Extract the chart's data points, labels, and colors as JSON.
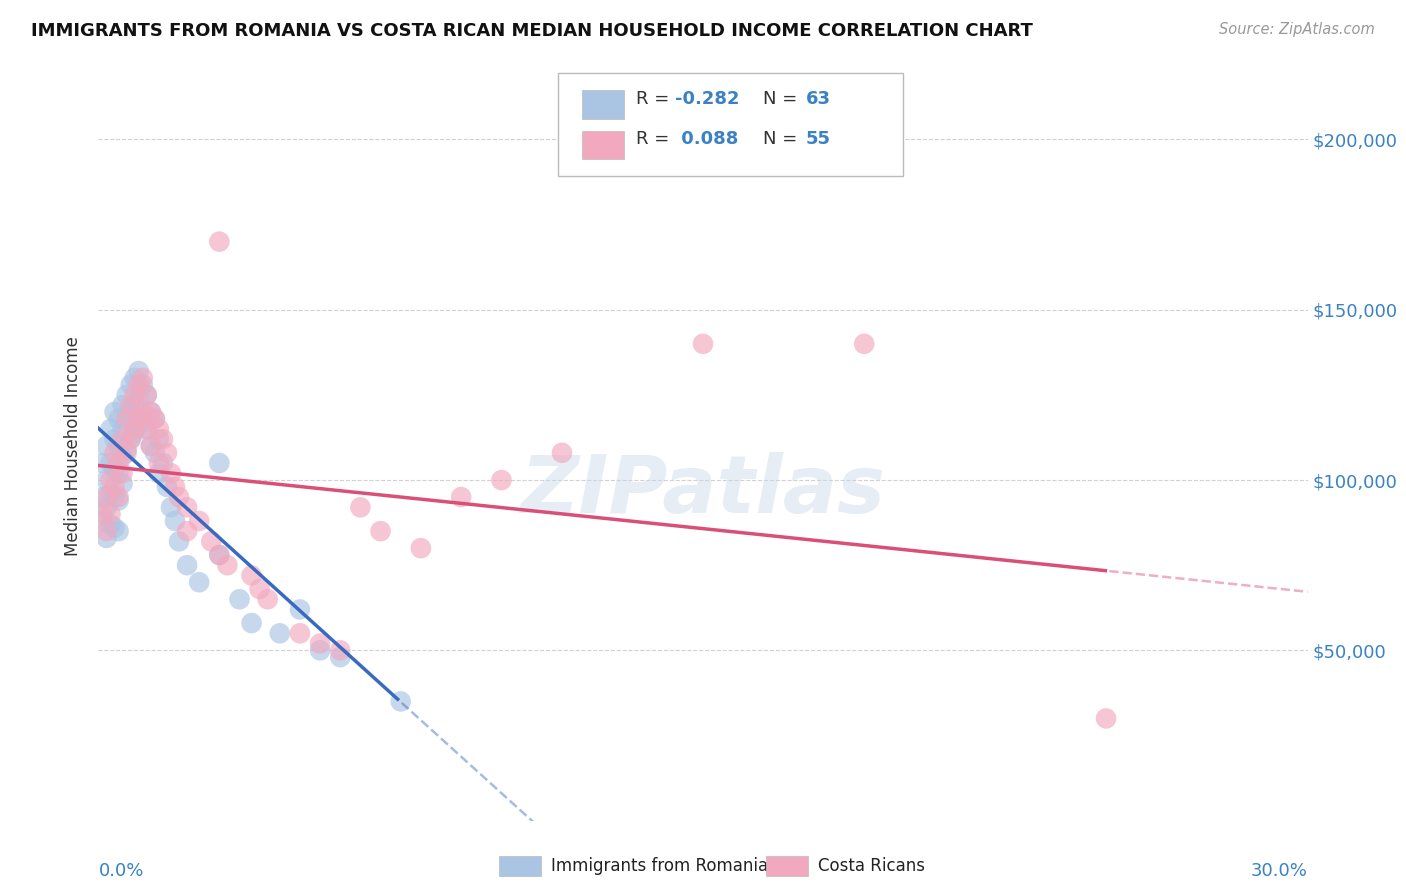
{
  "title": "IMMIGRANTS FROM ROMANIA VS COSTA RICAN MEDIAN HOUSEHOLD INCOME CORRELATION CHART",
  "source": "Source: ZipAtlas.com",
  "ylabel": "Median Household Income",
  "yticks": [
    50000,
    100000,
    150000,
    200000
  ],
  "ytick_labels": [
    "$50,000",
    "$100,000",
    "$150,000",
    "$200,000"
  ],
  "xlim": [
    0.0,
    0.3
  ],
  "ylim": [
    0,
    220000
  ],
  "legend_blue_r": "-0.282",
  "legend_blue_n": "63",
  "legend_pink_r": "0.088",
  "legend_pink_n": "55",
  "blue_color": "#aac4e4",
  "pink_color": "#f2a8be",
  "trend_blue_solid": "#3a6abf",
  "trend_pink_solid": "#d94f78",
  "watermark": "ZIPatlas",
  "blue_scatter_x": [
    0.001,
    0.001,
    0.001,
    0.002,
    0.002,
    0.002,
    0.002,
    0.003,
    0.003,
    0.003,
    0.003,
    0.004,
    0.004,
    0.004,
    0.004,
    0.004,
    0.005,
    0.005,
    0.005,
    0.005,
    0.005,
    0.006,
    0.006,
    0.006,
    0.006,
    0.007,
    0.007,
    0.007,
    0.008,
    0.008,
    0.008,
    0.009,
    0.009,
    0.009,
    0.01,
    0.01,
    0.01,
    0.011,
    0.011,
    0.012,
    0.012,
    0.013,
    0.013,
    0.014,
    0.014,
    0.015,
    0.015,
    0.016,
    0.017,
    0.018,
    0.019,
    0.02,
    0.022,
    0.025,
    0.03,
    0.035,
    0.038,
    0.045,
    0.05,
    0.055,
    0.06,
    0.075,
    0.03
  ],
  "blue_scatter_y": [
    105000,
    95000,
    88000,
    110000,
    100000,
    92000,
    83000,
    115000,
    105000,
    96000,
    87000,
    120000,
    112000,
    103000,
    95000,
    86000,
    118000,
    110000,
    102000,
    94000,
    85000,
    122000,
    115000,
    107000,
    99000,
    125000,
    117000,
    109000,
    128000,
    120000,
    112000,
    130000,
    122000,
    114000,
    132000,
    124000,
    116000,
    128000,
    118000,
    125000,
    115000,
    120000,
    110000,
    118000,
    108000,
    112000,
    102000,
    105000,
    98000,
    92000,
    88000,
    82000,
    75000,
    70000,
    78000,
    65000,
    58000,
    55000,
    62000,
    50000,
    48000,
    35000,
    105000
  ],
  "pink_scatter_x": [
    0.001,
    0.002,
    0.002,
    0.003,
    0.003,
    0.004,
    0.004,
    0.005,
    0.005,
    0.006,
    0.006,
    0.007,
    0.007,
    0.008,
    0.008,
    0.009,
    0.009,
    0.01,
    0.01,
    0.011,
    0.011,
    0.012,
    0.012,
    0.013,
    0.013,
    0.014,
    0.015,
    0.015,
    0.016,
    0.017,
    0.018,
    0.019,
    0.02,
    0.022,
    0.022,
    0.025,
    0.028,
    0.03,
    0.032,
    0.038,
    0.04,
    0.042,
    0.05,
    0.055,
    0.06,
    0.065,
    0.07,
    0.08,
    0.09,
    0.1,
    0.115,
    0.15,
    0.19,
    0.25,
    0.03
  ],
  "pink_scatter_y": [
    90000,
    95000,
    85000,
    100000,
    90000,
    108000,
    98000,
    105000,
    95000,
    112000,
    102000,
    118000,
    108000,
    122000,
    112000,
    125000,
    115000,
    128000,
    118000,
    130000,
    120000,
    125000,
    115000,
    120000,
    110000,
    118000,
    115000,
    105000,
    112000,
    108000,
    102000,
    98000,
    95000,
    92000,
    85000,
    88000,
    82000,
    78000,
    75000,
    72000,
    68000,
    65000,
    55000,
    52000,
    50000,
    92000,
    85000,
    80000,
    95000,
    100000,
    108000,
    140000,
    140000,
    30000,
    170000
  ]
}
